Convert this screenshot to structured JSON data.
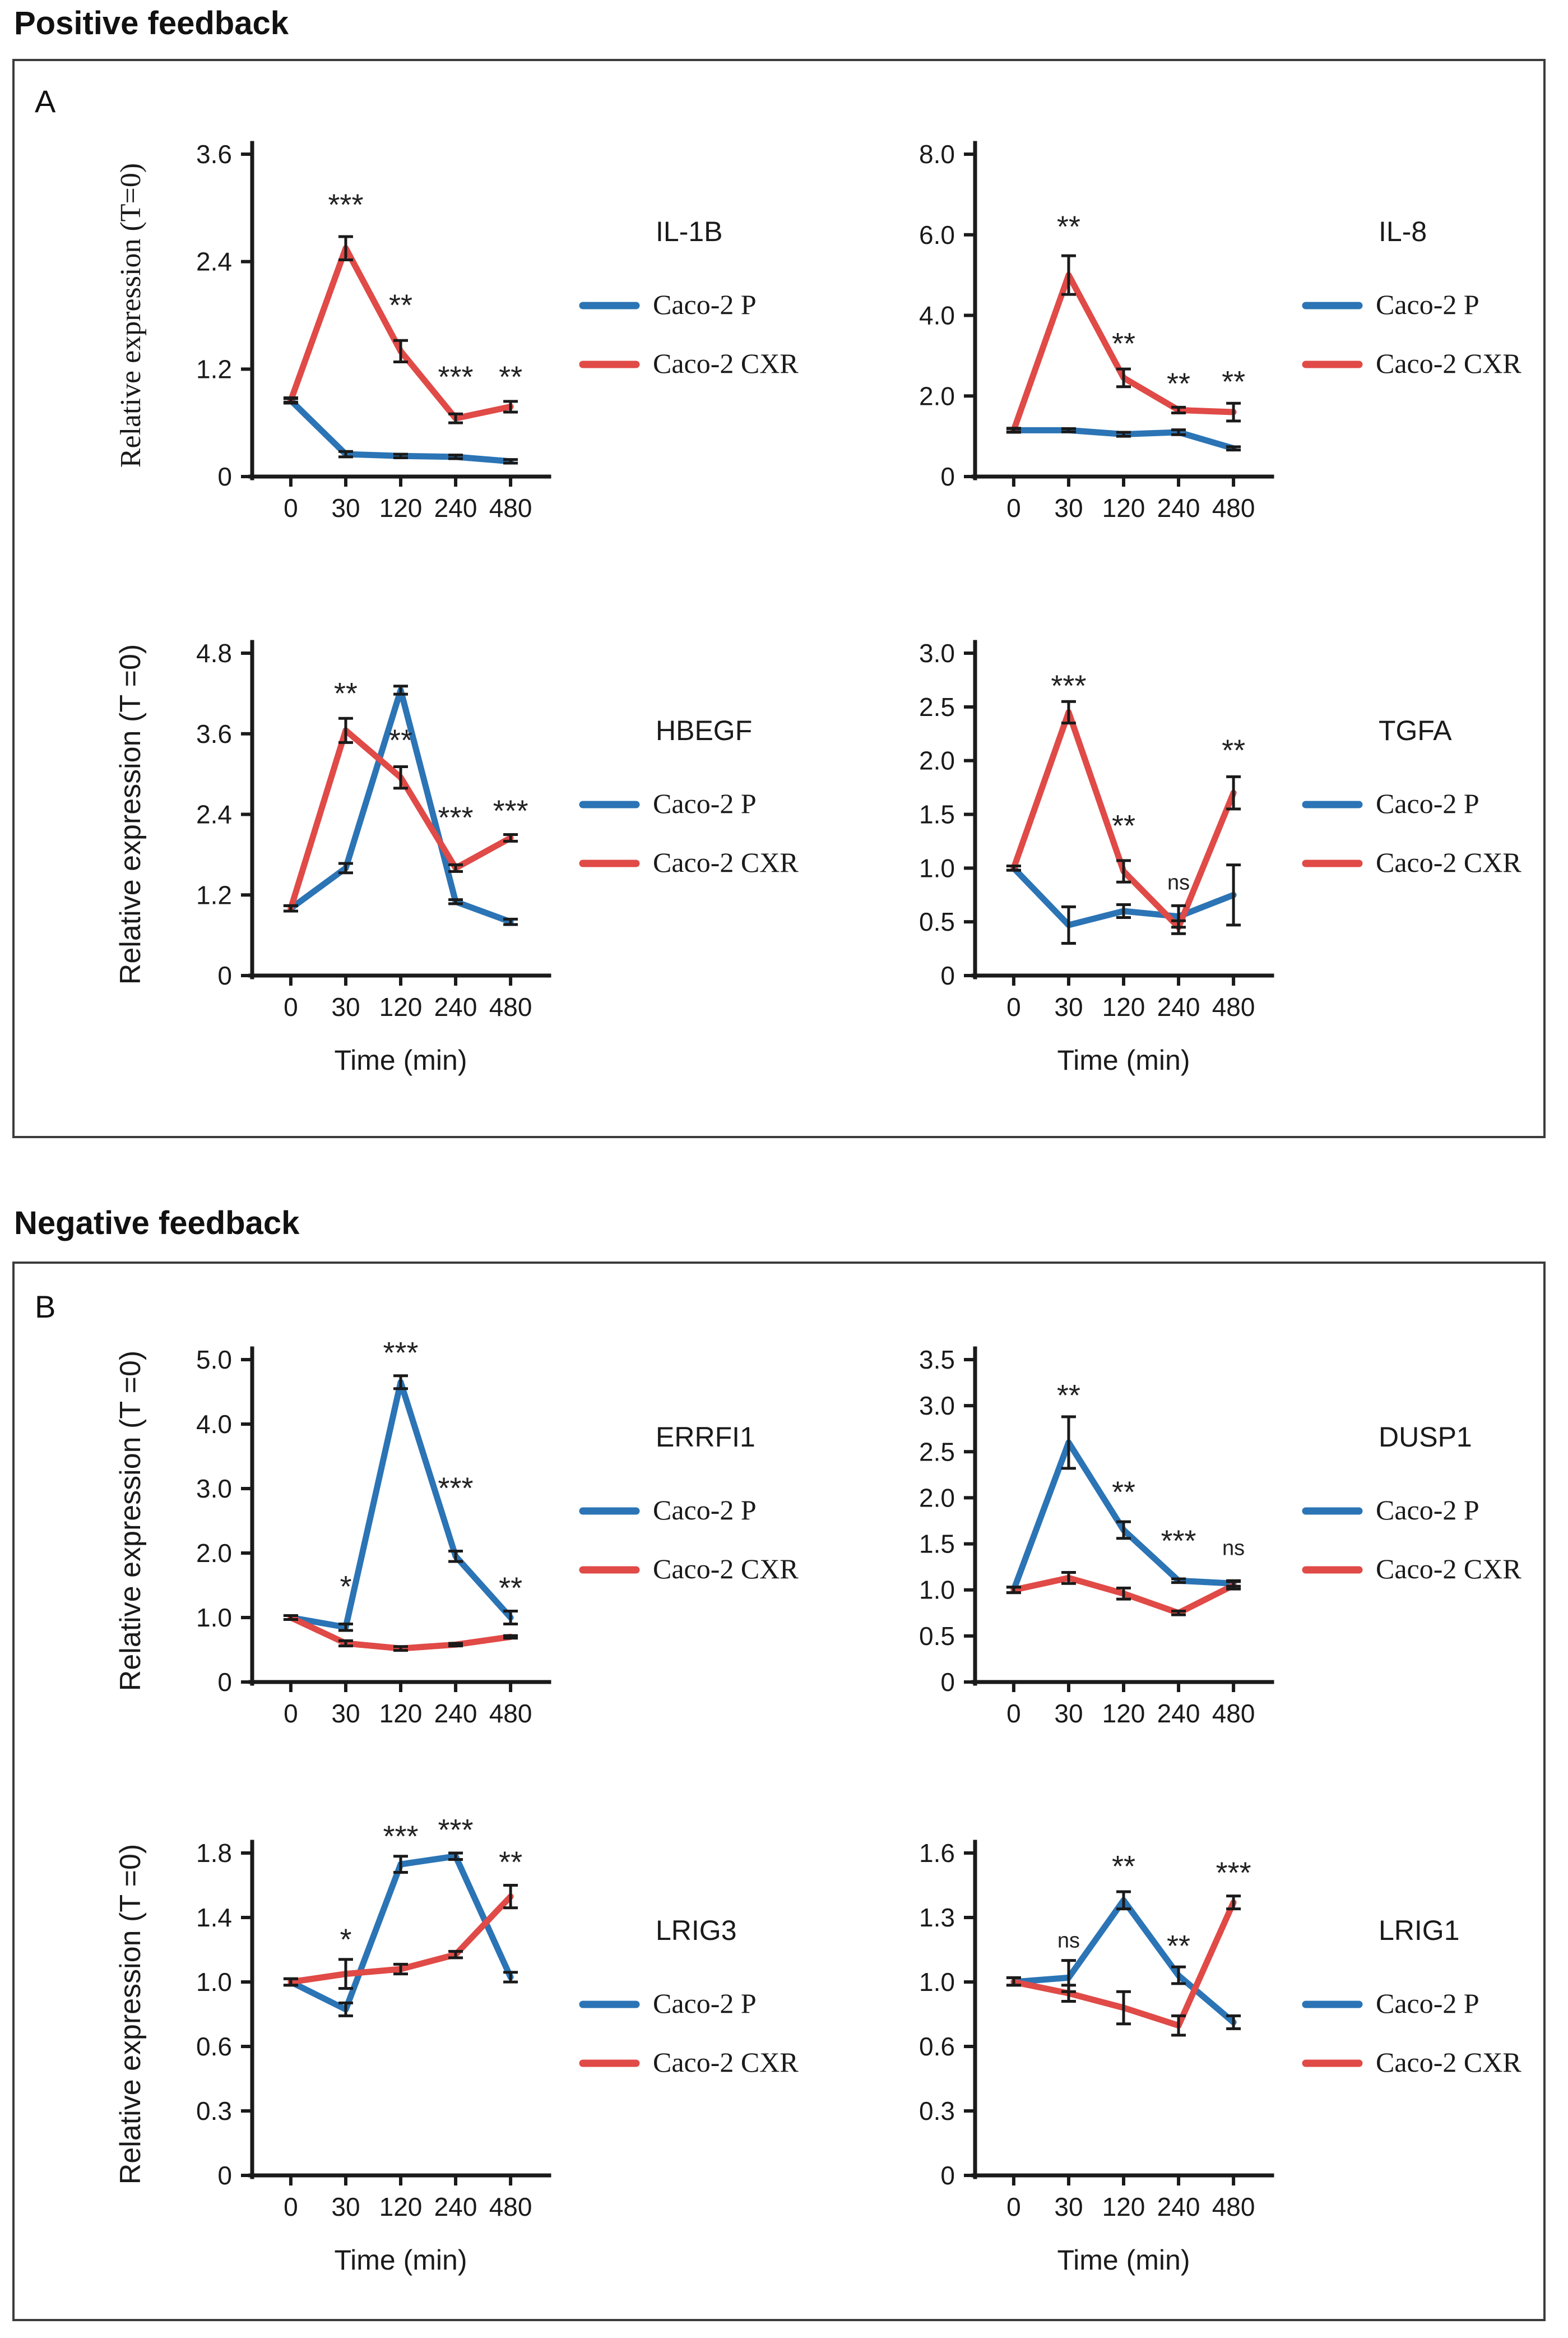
{
  "sections": [
    {
      "letter": "A",
      "title": "Positive feedback"
    },
    {
      "letter": "B",
      "title": "Negative feedback"
    }
  ],
  "colors": {
    "blue": "#2B74B5",
    "red": "#E04A47",
    "axis": "#1A1A1A",
    "text": "#1A1A1A",
    "box_border": "#3C3C3C"
  },
  "legend_labels": {
    "parental": "Caco-2 P",
    "resistant": "Caco-2 CXR"
  },
  "x_axis_title": "Time (min)",
  "y_axis_title": "Relative expression (T=0)",
  "chart_data": [
    {
      "id": "il1b",
      "type": "line",
      "panel": "A",
      "title": "IL-1B",
      "x_categories": [
        "0",
        "30",
        "120",
        "240",
        "480"
      ],
      "y_ticks": {
        "values": [
          0,
          1.2,
          2.4,
          3.6
        ],
        "labels": [
          "0",
          "1.2",
          "2.4",
          "3.6"
        ]
      },
      "y_axis_label": "Relative expression (T=0)",
      "y_label_font": "serif",
      "x_axis_label": null,
      "series": [
        {
          "name": "Caco-2 P",
          "color": "blue",
          "values": [
            0.85,
            0.25,
            0.23,
            0.22,
            0.17
          ],
          "errors": [
            0.02,
            0.03,
            0.02,
            0.02,
            0.02
          ]
        },
        {
          "name": "Caco-2 CXR",
          "color": "red",
          "values": [
            0.85,
            2.55,
            1.4,
            0.65,
            0.78
          ],
          "errors": [
            0.03,
            0.13,
            0.12,
            0.05,
            0.06
          ]
        }
      ],
      "significance": [
        {
          "x_index": 1,
          "label": "***",
          "y": 2.92
        },
        {
          "x_index": 2,
          "label": "**",
          "y": 1.8
        },
        {
          "x_index": 3,
          "label": "***",
          "y": 1.0
        },
        {
          "x_index": 4,
          "label": "**",
          "y": 1.0
        }
      ]
    },
    {
      "id": "il8",
      "type": "line",
      "panel": "A",
      "title": "IL-8",
      "x_categories": [
        "0",
        "30",
        "120",
        "240",
        "480"
      ],
      "y_ticks": {
        "values": [
          0,
          2,
          4,
          6,
          8
        ],
        "labels": [
          "0",
          "2.0",
          "4.0",
          "6.0",
          "8.0"
        ]
      },
      "y_axis_label": null,
      "y_label_font": "sans",
      "x_axis_label": null,
      "series": [
        {
          "name": "Caco-2 P",
          "color": "blue",
          "values": [
            1.15,
            1.15,
            1.05,
            1.1,
            0.7
          ],
          "errors": [
            0.04,
            0.04,
            0.05,
            0.06,
            0.04
          ]
        },
        {
          "name": "Caco-2 CXR",
          "color": "red",
          "values": [
            1.15,
            5.0,
            2.45,
            1.65,
            1.6
          ],
          "errors": [
            0.05,
            0.48,
            0.22,
            0.07,
            0.22
          ]
        }
      ],
      "significance": [
        {
          "x_index": 1,
          "label": "**",
          "y": 5.95
        },
        {
          "x_index": 2,
          "label": "**",
          "y": 3.05
        },
        {
          "x_index": 3,
          "label": "**",
          "y": 2.05
        },
        {
          "x_index": 4,
          "label": "**",
          "y": 2.1
        }
      ]
    },
    {
      "id": "hbegf",
      "type": "line",
      "panel": "A",
      "title": "HBEGF",
      "x_categories": [
        "0",
        "30",
        "120",
        "240",
        "480"
      ],
      "y_ticks": {
        "values": [
          0,
          1.2,
          2.4,
          3.6,
          4.8
        ],
        "labels": [
          "0",
          "1.2",
          "2.4",
          "3.6",
          "4.8"
        ]
      },
      "y_axis_label": "Relative expression (T =0)",
      "y_label_font": "sans",
      "x_axis_label": "Time (min)",
      "series": [
        {
          "name": "Caco-2 P",
          "color": "blue",
          "values": [
            1.0,
            1.6,
            4.25,
            1.1,
            0.8
          ],
          "errors": [
            0.04,
            0.07,
            0.06,
            0.03,
            0.04
          ]
        },
        {
          "name": "Caco-2 CXR",
          "color": "red",
          "values": [
            1.0,
            3.65,
            2.95,
            1.6,
            2.05
          ],
          "errors": [
            0.04,
            0.18,
            0.16,
            0.05,
            0.05
          ]
        }
      ],
      "significance": [
        {
          "x_index": 1,
          "label": "**",
          "y": 4.05
        },
        {
          "x_index": 2,
          "label": "**",
          "y": 3.35
        },
        {
          "x_index": 3,
          "label": "***",
          "y": 2.2
        },
        {
          "x_index": 4,
          "label": "***",
          "y": 2.3
        }
      ]
    },
    {
      "id": "tgfa",
      "type": "line",
      "panel": "A",
      "title": "TGFA",
      "x_categories": [
        "0",
        "30",
        "120",
        "240",
        "480"
      ],
      "y_ticks": {
        "values": [
          0,
          0.5,
          1.0,
          1.5,
          2.0,
          2.5,
          3.0
        ],
        "labels": [
          "0",
          "0.5",
          "1.0",
          "1.5",
          "2.0",
          "2.5",
          "3.0"
        ]
      },
      "y_axis_label": null,
      "y_label_font": "sans",
      "x_axis_label": "Time (min)",
      "series": [
        {
          "name": "Caco-2 P",
          "color": "blue",
          "values": [
            1.0,
            0.47,
            0.6,
            0.55,
            0.75
          ],
          "errors": [
            0.02,
            0.17,
            0.06,
            0.1,
            0.28
          ]
        },
        {
          "name": "Caco-2 CXR",
          "color": "red",
          "values": [
            1.0,
            2.45,
            0.97,
            0.45,
            1.7
          ],
          "errors": [
            0.02,
            0.1,
            0.1,
            0.06,
            0.15
          ]
        }
      ],
      "significance": [
        {
          "x_index": 1,
          "label": "***",
          "y": 2.6
        },
        {
          "x_index": 2,
          "label": "**",
          "y": 1.3
        },
        {
          "x_index": 3,
          "label": "ns",
          "y": 0.8
        },
        {
          "x_index": 4,
          "label": "**",
          "y": 2.0
        }
      ]
    },
    {
      "id": "errfi1",
      "type": "line",
      "panel": "B",
      "title": "ERRFI1",
      "x_categories": [
        "0",
        "30",
        "120",
        "240",
        "480"
      ],
      "y_ticks": {
        "values": [
          0,
          1,
          2,
          3,
          4,
          5
        ],
        "labels": [
          "0",
          "1.0",
          "2.0",
          "3.0",
          "4.0",
          "5.0"
        ]
      },
      "y_axis_label": "Relative expression (T =0)",
      "y_label_font": "sans",
      "x_axis_label": null,
      "series": [
        {
          "name": "Caco-2 P",
          "color": "blue",
          "values": [
            1.0,
            0.85,
            4.65,
            1.95,
            1.0
          ],
          "errors": [
            0.03,
            0.05,
            0.1,
            0.08,
            0.1
          ]
        },
        {
          "name": "Caco-2 CXR",
          "color": "red",
          "values": [
            1.0,
            0.6,
            0.52,
            0.58,
            0.7
          ],
          "errors": [
            0.03,
            0.04,
            0.03,
            0.02,
            0.02
          ]
        }
      ],
      "significance": [
        {
          "x_index": 1,
          "label": "*",
          "y": 1.32
        },
        {
          "x_index": 2,
          "label": "***",
          "y": 4.95
        },
        {
          "x_index": 3,
          "label": "***",
          "y": 2.85
        },
        {
          "x_index": 4,
          "label": "**",
          "y": 1.3
        }
      ]
    },
    {
      "id": "dusp1",
      "type": "line",
      "panel": "B",
      "title": "DUSP1",
      "x_categories": [
        "0",
        "30",
        "120",
        "240",
        "480"
      ],
      "y_ticks": {
        "values": [
          0,
          0.5,
          1.0,
          1.5,
          2.0,
          2.5,
          3.0,
          3.5
        ],
        "labels": [
          "0",
          "0.5",
          "1.0",
          "1.5",
          "2.0",
          "2.5",
          "3.0",
          "3.5"
        ]
      },
      "y_axis_label": null,
      "y_label_font": "sans",
      "x_axis_label": null,
      "series": [
        {
          "name": "Caco-2 P",
          "color": "blue",
          "values": [
            1.0,
            2.6,
            1.65,
            1.1,
            1.07
          ],
          "errors": [
            0.03,
            0.28,
            0.09,
            0.02,
            0.03
          ]
        },
        {
          "name": "Caco-2 CXR",
          "color": "red",
          "values": [
            1.0,
            1.13,
            0.96,
            0.75,
            1.05
          ],
          "errors": [
            0.03,
            0.06,
            0.06,
            0.02,
            0.04
          ]
        }
      ],
      "significance": [
        {
          "x_index": 1,
          "label": "**",
          "y": 3.0
        },
        {
          "x_index": 2,
          "label": "**",
          "y": 1.95
        },
        {
          "x_index": 3,
          "label": "***",
          "y": 1.42
        },
        {
          "x_index": 4,
          "label": "ns",
          "y": 1.38
        }
      ]
    },
    {
      "id": "lrig3",
      "type": "line",
      "panel": "B",
      "title": "LRIG3",
      "x_categories": [
        "0",
        "30",
        "120",
        "240",
        "480"
      ],
      "y_ticks": {
        "values": [
          0,
          0.3,
          0.6,
          1.0,
          1.4,
          1.8
        ],
        "labels": [
          "0",
          "0.3",
          "0.6",
          "1.0",
          "1.4",
          "1.8"
        ]
      },
      "y_axis_label": "Relative expression (T =0)",
      "y_label_font": "sans",
      "x_axis_label": "Time (min)",
      "series": [
        {
          "name": "Caco-2 P",
          "color": "blue",
          "values": [
            1.0,
            0.83,
            1.73,
            1.78,
            1.03
          ],
          "errors": [
            0.02,
            0.04,
            0.05,
            0.02,
            0.03
          ]
        },
        {
          "name": "Caco-2 CXR",
          "color": "red",
          "values": [
            1.0,
            1.05,
            1.08,
            1.17,
            1.53
          ],
          "errors": [
            0.02,
            0.09,
            0.03,
            0.02,
            0.07
          ]
        }
      ],
      "significance": [
        {
          "x_index": 1,
          "label": "*",
          "y": 1.2
        },
        {
          "x_index": 2,
          "label": "***",
          "y": 1.84
        },
        {
          "x_index": 3,
          "label": "***",
          "y": 1.88
        },
        {
          "x_index": 4,
          "label": "**",
          "y": 1.68
        }
      ]
    },
    {
      "id": "lrig1",
      "type": "line",
      "panel": "B",
      "title": "LRIG1",
      "x_categories": [
        "0",
        "30",
        "120",
        "240",
        "480"
      ],
      "y_ticks": {
        "values": [
          0,
          0.3,
          0.6,
          1.0,
          1.3,
          1.6
        ],
        "labels": [
          "0",
          "0.3",
          "0.6",
          "1.0",
          "1.3",
          "1.6"
        ]
      },
      "y_axis_label": null,
      "y_label_font": "sans",
      "x_axis_label": "Time (min)",
      "series": [
        {
          "name": "Caco-2 P",
          "color": "blue",
          "values": [
            1.0,
            1.02,
            1.38,
            1.03,
            0.75
          ],
          "errors": [
            0.02,
            0.08,
            0.04,
            0.04,
            0.04
          ]
        },
        {
          "name": "Caco-2 CXR",
          "color": "red",
          "values": [
            1.0,
            0.93,
            0.84,
            0.73,
            1.37
          ],
          "errors": [
            0.02,
            0.05,
            0.1,
            0.06,
            0.03
          ]
        }
      ],
      "significance": [
        {
          "x_index": 1,
          "label": "ns",
          "y": 1.16
        },
        {
          "x_index": 2,
          "label": "**",
          "y": 1.49
        },
        {
          "x_index": 3,
          "label": "**",
          "y": 1.12
        },
        {
          "x_index": 4,
          "label": "***",
          "y": 1.46
        }
      ]
    }
  ]
}
